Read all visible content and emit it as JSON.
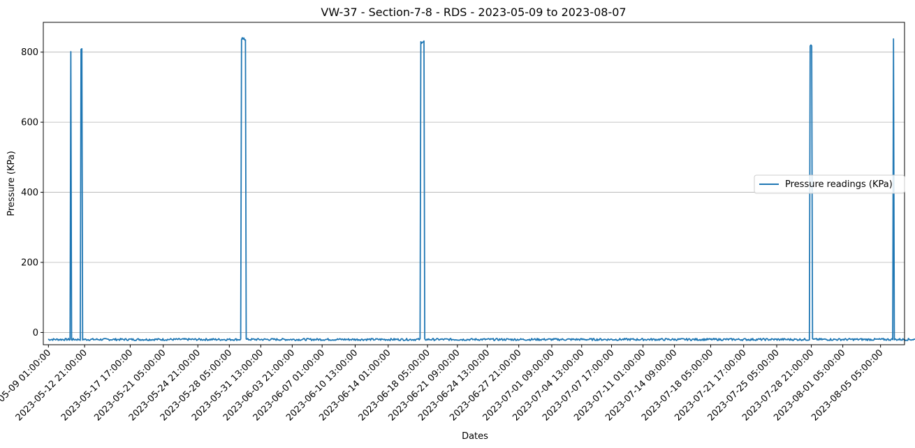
{
  "chart_data": {
    "type": "line",
    "title": "VW-37 - Section-7-8 - RDS - 2023-05-09 to 2023-08-07",
    "xlabel": "Dates",
    "ylabel": "Pressure (KPa)",
    "ylim": [
      -35,
      885
    ],
    "y_ticks": [
      0,
      200,
      400,
      600,
      800
    ],
    "grid": "horizontal",
    "legend_position": "center-right",
    "x_range": [
      "2023-05-08 12:00:00",
      "2023-08-07 18:00:00"
    ],
    "x_ticks": [
      "2023-05-09 01:00:00",
      "2023-05-12 21:00:00",
      "2023-05-17 17:00:00",
      "2023-05-21 05:00:00",
      "2023-05-24 21:00:00",
      "2023-05-28 05:00:00",
      "2023-05-31 13:00:00",
      "2023-06-03 21:00:00",
      "2023-06-07 01:00:00",
      "2023-06-10 13:00:00",
      "2023-06-14 01:00:00",
      "2023-06-18 05:00:00",
      "2023-06-21 09:00:00",
      "2023-06-24 13:00:00",
      "2023-06-27 21:00:00",
      "2023-07-01 09:00:00",
      "2023-07-04 13:00:00",
      "2023-07-07 17:00:00",
      "2023-07-11 01:00:00",
      "2023-07-14 09:00:00",
      "2023-07-18 05:00:00",
      "2023-07-21 17:00:00",
      "2023-07-25 05:00:00",
      "2023-07-28 21:00:00",
      "2023-08-01 05:00:00",
      "2023-08-05 05:00:00"
    ],
    "series": [
      {
        "name": "Pressure readings (KPa)",
        "color": "#1f77b4",
        "baseline": -20,
        "spikes": [
          {
            "start": "2023-05-11 10:00:00",
            "end": "2023-05-11 10:00:00",
            "value": 800
          },
          {
            "start": "2023-05-12 11:00:00",
            "end": "2023-05-12 15:00:00",
            "value": 810
          },
          {
            "start": "2023-05-14 11:00:00",
            "end": "2023-05-14 11:00:00",
            "value": 803
          },
          {
            "start": "2023-05-14 19:00:00",
            "end": "2023-05-14 19:00:00",
            "value": 818
          },
          {
            "start": "2023-05-18 09:00:00",
            "end": "2023-05-18 09:00:00",
            "value": 828
          },
          {
            "start": "2023-05-18 17:00:00",
            "end": "2023-05-18 17:00:00",
            "value": 830
          },
          {
            "start": "2023-05-23 17:00:00",
            "end": "2023-05-23 17:00:00",
            "value": 812
          },
          {
            "start": "2023-05-26 09:00:00",
            "end": "2023-05-26 09:00:00",
            "value": 831
          },
          {
            "start": "2023-05-28 11:00:00",
            "end": "2023-05-28 11:00:00",
            "value": 834
          },
          {
            "start": "2023-05-28 19:00:00",
            "end": "2023-05-28 19:00:00",
            "value": 829
          },
          {
            "start": "2023-05-29 11:00:00",
            "end": "2023-05-29 23:00:00",
            "value": 838
          },
          {
            "start": "2023-06-03 19:00:00",
            "end": "2023-06-03 19:00:00",
            "value": 833
          },
          {
            "start": "2023-06-05 21:00:00",
            "end": "2023-06-05 21:00:00",
            "value": 835
          },
          {
            "start": "2023-06-08 13:00:00",
            "end": "2023-06-08 13:00:00",
            "value": 835
          },
          {
            "start": "2023-06-10 01:00:00",
            "end": "2023-06-10 01:00:00",
            "value": 838
          },
          {
            "start": "2023-06-11 11:00:00",
            "end": "2023-06-11 11:00:00",
            "value": 812
          },
          {
            "start": "2023-06-17 11:00:00",
            "end": "2023-06-17 21:00:00",
            "value": 828
          },
          {
            "start": "2023-06-18 19:00:00",
            "end": "2023-06-18 19:00:00",
            "value": 828
          },
          {
            "start": "2023-06-19 13:00:00",
            "end": "2023-06-19 13:00:00",
            "value": 820
          },
          {
            "start": "2023-06-26 03:00:00",
            "end": "2023-06-26 03:00:00",
            "value": 825
          },
          {
            "start": "2023-07-03 21:00:00",
            "end": "2023-07-03 21:00:00",
            "value": 835
          },
          {
            "start": "2023-07-16 21:00:00",
            "end": "2023-07-16 21:00:00",
            "value": 812
          },
          {
            "start": "2023-07-20 13:00:00",
            "end": "2023-07-20 13:00:00",
            "value": 825
          },
          {
            "start": "2023-07-21 05:00:00",
            "end": "2023-07-21 05:00:00",
            "value": 815
          },
          {
            "start": "2023-07-22 09:00:00",
            "end": "2023-07-22 09:00:00",
            "value": 826
          },
          {
            "start": "2023-07-27 17:00:00",
            "end": "2023-07-27 17:00:00",
            "value": 808
          },
          {
            "start": "2023-07-28 17:00:00",
            "end": "2023-07-28 23:00:00",
            "value": 820
          },
          {
            "start": "2023-07-30 19:00:00",
            "end": "2023-07-30 19:00:00",
            "value": 830
          },
          {
            "start": "2023-08-01 23:00:00",
            "end": "2023-08-01 23:00:00",
            "value": 828
          },
          {
            "start": "2023-08-05 01:00:00",
            "end": "2023-08-05 01:00:00",
            "value": 820
          },
          {
            "start": "2023-08-06 05:00:00",
            "end": "2023-08-06 05:00:00",
            "value": 835
          },
          {
            "start": "2023-08-06 13:00:00",
            "end": "2023-08-06 15:00:00",
            "value": 835
          },
          {
            "start": "2023-08-16 05:00:00",
            "end": "2023-08-16 05:00:00",
            "value": 832
          }
        ]
      }
    ]
  }
}
